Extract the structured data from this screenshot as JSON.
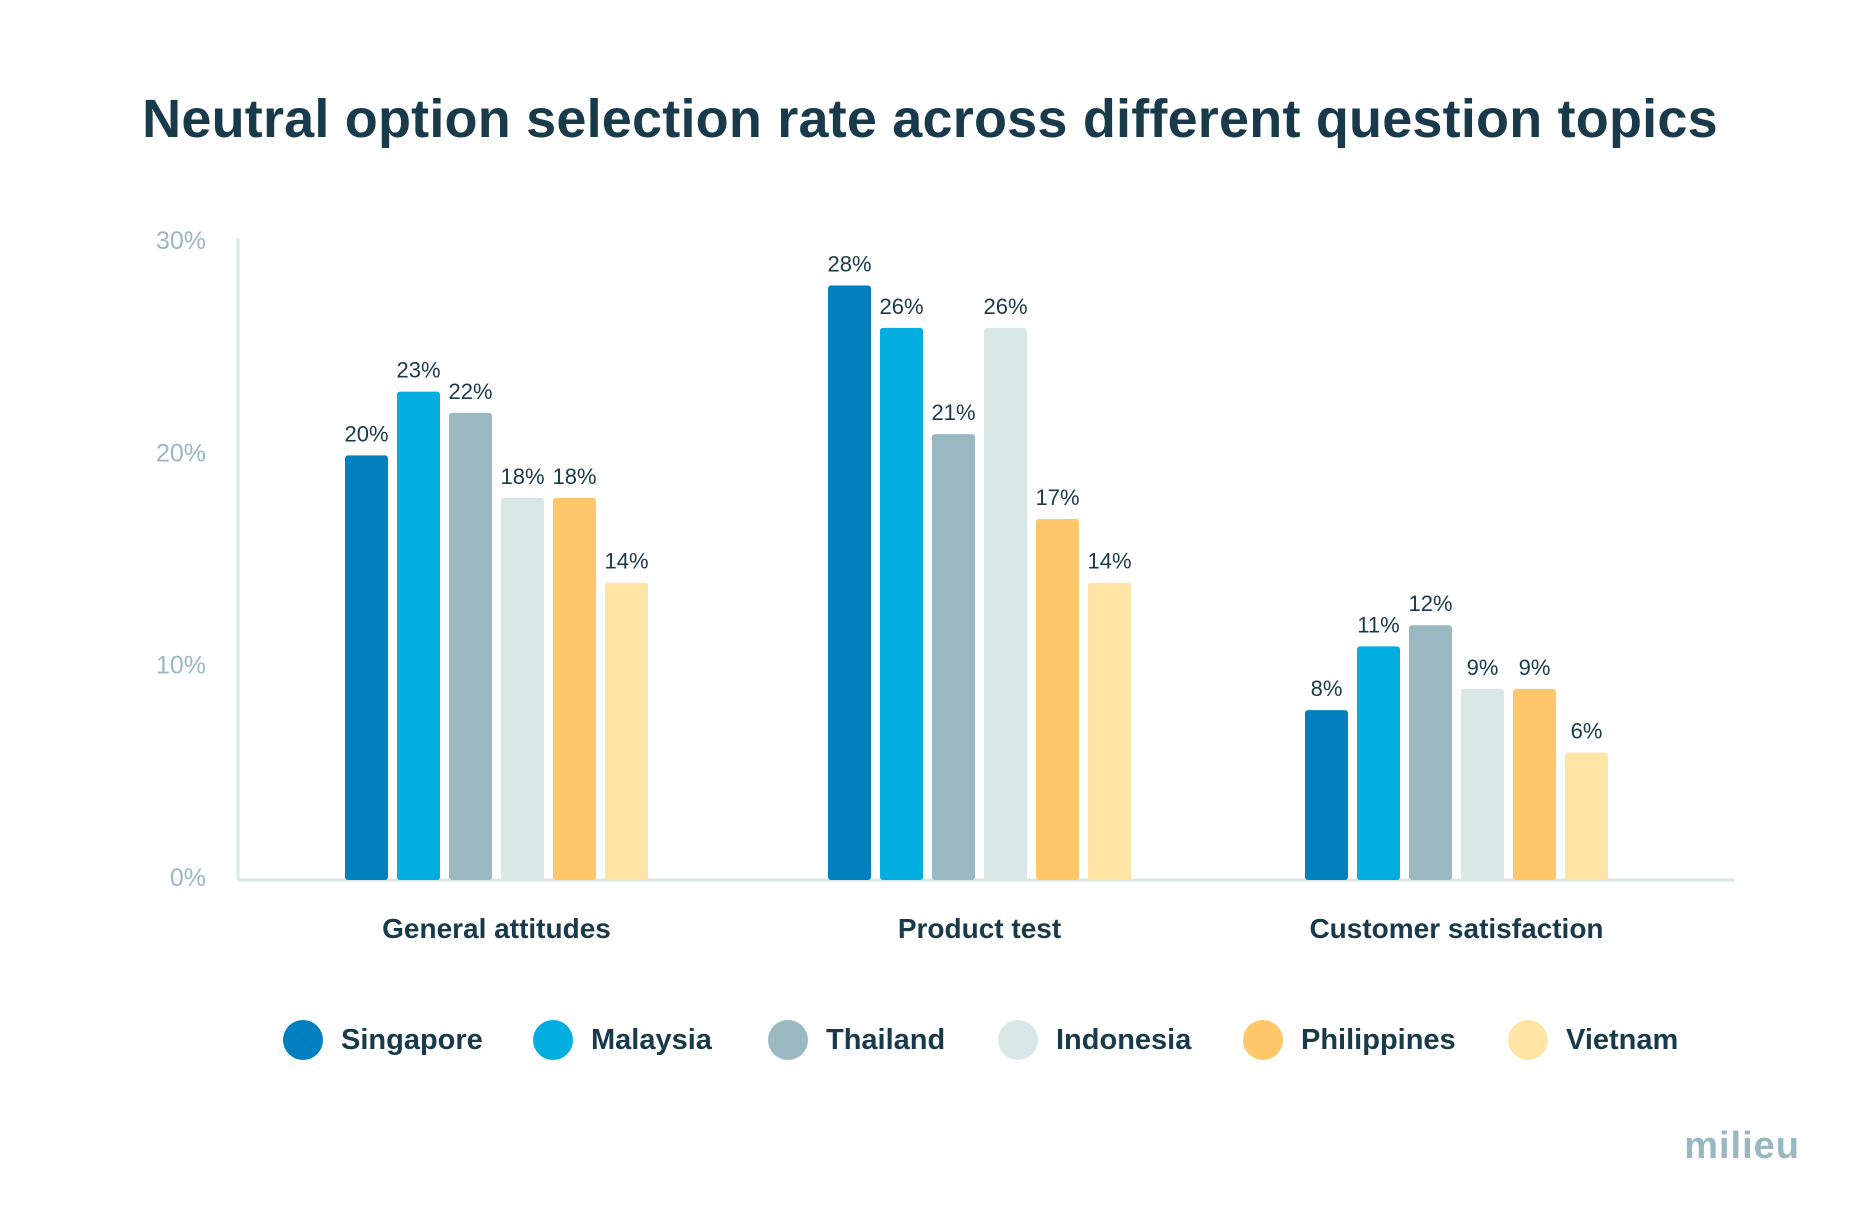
{
  "brand": "milieu",
  "chart_data": {
    "type": "bar",
    "title": "Neutral option selection rate across different question topics",
    "categories": [
      "General attitudes",
      "Product test",
      "Customer satisfaction"
    ],
    "yticks": [
      "0%",
      "10%",
      "20%",
      "30%"
    ],
    "ylim": [
      0,
      30
    ],
    "grid": false,
    "legend_position": "bottom",
    "series": [
      {
        "name": "Singapore",
        "color": "#0180bf",
        "values": [
          20,
          28,
          8
        ],
        "labels": [
          "20%",
          "28%",
          "8%"
        ]
      },
      {
        "name": "Malaysia",
        "color": "#02aee0",
        "values": [
          23,
          26,
          11
        ],
        "labels": [
          "23%",
          "26%",
          "11%"
        ]
      },
      {
        "name": "Thailand",
        "color": "#9ab8c1",
        "values": [
          22,
          21,
          12
        ],
        "labels": [
          "22%",
          "21%",
          "12%"
        ]
      },
      {
        "name": "Indonesia",
        "color": "#d9e8e6",
        "values": [
          18,
          26,
          9
        ],
        "labels": [
          "18%",
          "26%",
          "9%"
        ]
      },
      {
        "name": "Philippines",
        "color": "#ffc76a",
        "values": [
          18,
          17,
          9
        ],
        "labels": [
          "18%",
          "17%",
          "9%"
        ]
      },
      {
        "name": "Vietnam",
        "color": "#ffe4a6",
        "values": [
          14,
          14,
          6
        ],
        "labels": [
          "14%",
          "14%",
          "6%"
        ]
      }
    ]
  }
}
